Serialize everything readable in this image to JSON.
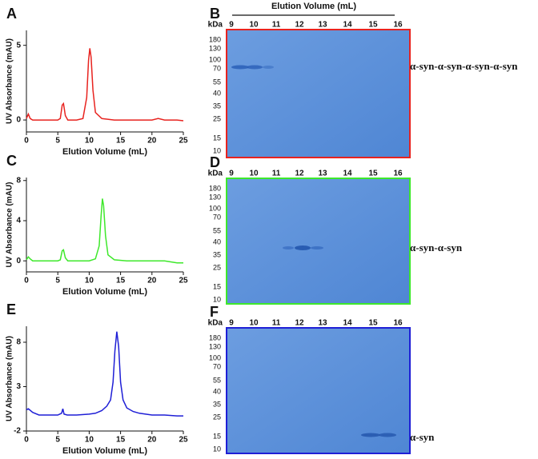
{
  "chart_data": [
    {
      "type": "line",
      "panel": "A",
      "xlabel": "Elution Volume (mL)",
      "ylabel": "UV Absorbance (mAU)",
      "color": "#e8231f",
      "x": [
        0,
        0.3,
        0.6,
        1,
        2,
        3,
        4,
        5,
        5.4,
        5.7,
        5.9,
        6.2,
        6.6,
        8,
        9,
        9.6,
        9.9,
        10.1,
        10.3,
        10.6,
        11,
        12,
        14,
        16,
        18,
        20,
        21,
        22,
        24,
        25
      ],
      "values": [
        0.1,
        0.4,
        0.1,
        0,
        0,
        0,
        0,
        0,
        0.1,
        1.0,
        1.1,
        0.3,
        0,
        0,
        0.1,
        1.5,
        4.0,
        4.8,
        4.2,
        2.0,
        0.5,
        0.1,
        0,
        0,
        0,
        0,
        0.1,
        0,
        0,
        -0.05
      ],
      "xlim": [
        0,
        25
      ],
      "xticks": [
        0,
        5,
        10,
        15,
        20,
        25
      ],
      "ylim": [
        -0.8,
        6
      ],
      "yticks": [
        0,
        5
      ]
    },
    {
      "type": "line",
      "panel": "C",
      "xlabel": "Elution Volume (mL)",
      "ylabel": "UV Absorbance (mAU)",
      "color": "#3ee82b",
      "x": [
        0,
        0.3,
        0.6,
        1,
        2,
        3,
        4,
        5,
        5.4,
        5.7,
        5.9,
        6.2,
        6.6,
        8,
        10,
        11,
        11.6,
        11.9,
        12.1,
        12.3,
        12.6,
        13,
        14,
        16,
        18,
        20,
        22,
        24,
        25
      ],
      "values": [
        0.1,
        0.4,
        0.2,
        0,
        0,
        0,
        0,
        0,
        0.1,
        1.0,
        1.1,
        0.3,
        0,
        0,
        0,
        0.2,
        1.5,
        4.5,
        6.2,
        5.5,
        2.5,
        0.6,
        0.1,
        0,
        0,
        0,
        0,
        -0.2,
        -0.2
      ],
      "xlim": [
        0,
        25
      ],
      "xticks": [
        0,
        5,
        10,
        15,
        20,
        25
      ],
      "ylim": [
        -1.1,
        8.3
      ],
      "yticks": [
        0,
        4,
        8
      ]
    },
    {
      "type": "line",
      "panel": "E",
      "xlabel": "Elution Volume (mL)",
      "ylabel": "UV Absorbance (mAU)",
      "color": "#1f1fd6",
      "x": [
        0,
        0.3,
        1,
        2,
        3,
        4,
        5,
        5.6,
        5.8,
        6,
        6.5,
        8,
        10,
        11,
        12,
        12.8,
        13.4,
        13.8,
        14.1,
        14.4,
        14.7,
        15,
        15.4,
        16,
        17,
        18,
        20,
        22,
        24,
        25
      ],
      "values": [
        0.4,
        0.5,
        0.1,
        -0.2,
        -0.2,
        -0.2,
        -0.2,
        0,
        0.5,
        -0.1,
        -0.2,
        -0.2,
        -0.1,
        0,
        0.3,
        0.8,
        1.5,
        3.5,
        7.0,
        9.2,
        7.5,
        3.5,
        1.5,
        0.6,
        0.2,
        0,
        -0.2,
        -0.2,
        -0.3,
        -0.3
      ],
      "xlim": [
        0,
        25
      ],
      "xticks": [
        0,
        5,
        10,
        15,
        20,
        25
      ],
      "ylim": [
        -2,
        9.8
      ],
      "yticks": [
        -2,
        3,
        8
      ]
    }
  ],
  "gel_header": "Elution Volume (mL)",
  "kda_label": "kDa",
  "gel_lanes": [
    9,
    10,
    11,
    12,
    13,
    14,
    15,
    16
  ],
  "gel_markers": [
    180,
    130,
    100,
    70,
    55,
    40,
    35,
    25,
    15,
    10
  ],
  "gels": [
    {
      "panel": "B",
      "label": "α-syn-α-syn-α-syn-α-syn",
      "color": "#e8231f"
    },
    {
      "panel": "D",
      "label": "α-syn-α-syn",
      "color": "#3ee82b"
    },
    {
      "panel": "F",
      "label": "α-syn",
      "color": "#1f1fd6"
    }
  ]
}
